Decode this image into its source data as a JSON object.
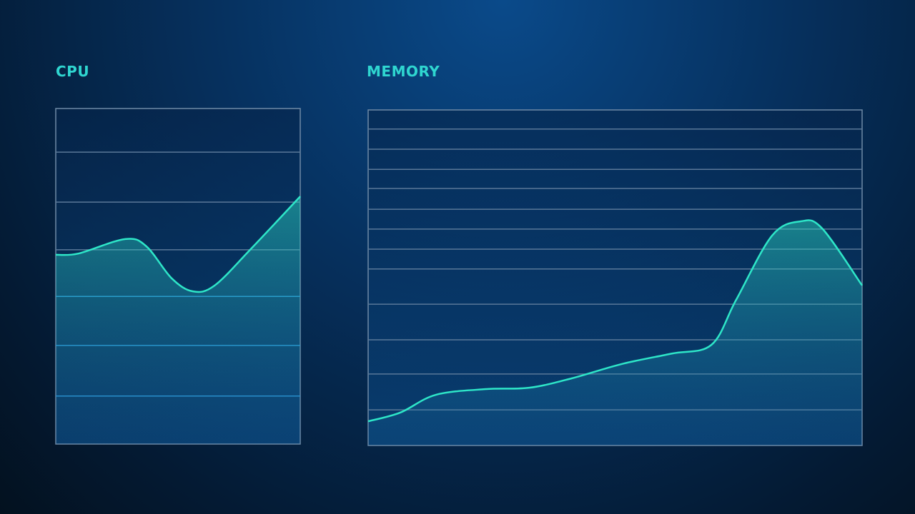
{
  "chart_data": [
    {
      "type": "area",
      "title": "CPU",
      "color": "#2ee6c8",
      "x": [
        0,
        9.4,
        28.4,
        37.1,
        47.4,
        56.1,
        64.9,
        79.5,
        100
      ],
      "values": [
        56.4,
        56.8,
        61.1,
        58.9,
        49.4,
        45.5,
        47.2,
        57.9,
        73.8
      ],
      "xlim": [
        0,
        100
      ],
      "ylim": [
        0,
        100
      ],
      "grid_lines": [
        14.3,
        29.4,
        44.0,
        57.9,
        72.1,
        87.0
      ]
    },
    {
      "type": "area",
      "title": "MEMORY",
      "color": "#2ee6c8",
      "x": [
        0,
        6.5,
        13.7,
        23.9,
        32.6,
        41.2,
        51.4,
        61.5,
        69.5,
        74.5,
        81.8,
        87.6,
        91.9,
        100
      ],
      "values": [
        7.2,
        9.8,
        15.1,
        16.8,
        17.2,
        20.0,
        24.3,
        27.4,
        30.0,
        43.4,
        62.6,
        66.8,
        64.7,
        47.7
      ],
      "xlim": [
        0,
        100
      ],
      "ylim": [
        0,
        100
      ],
      "grid_lines": [
        10.6,
        21.3,
        31.5,
        42.1,
        52.6,
        58.5,
        64.5,
        70.4,
        76.6,
        82.3,
        88.3,
        94.3
      ]
    }
  ]
}
